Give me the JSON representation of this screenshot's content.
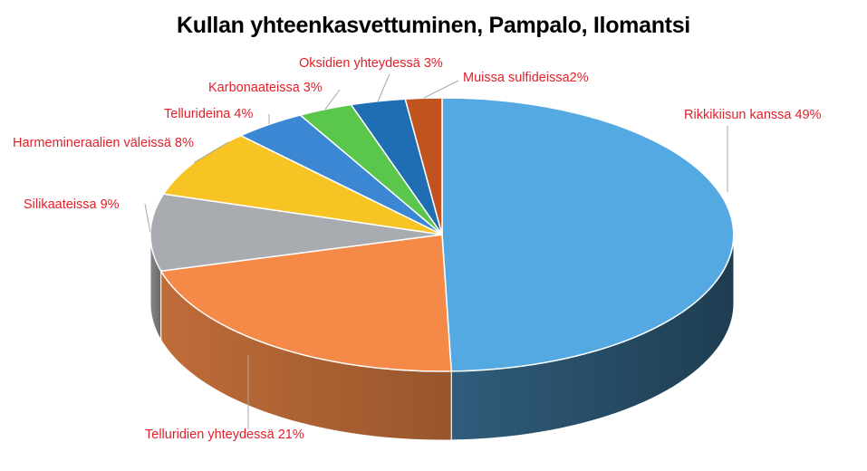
{
  "chart_data": {
    "type": "pie",
    "title": "Kullan yhteenkasvettuminen, Pampalo,  Ilomantsi",
    "slices": [
      {
        "label": "Rikkikiisun kanssa 49%",
        "value": 49,
        "color": "#55a9e2"
      },
      {
        "label": "Telluridien yhteydessä 21%",
        "value": 21,
        "color": "#f58a48"
      },
      {
        "label": "Silikaateissa 9%",
        "value": 9,
        "color": "#a8acb0"
      },
      {
        "label": "Harmemineraalien väleissä 8%",
        "value": 8,
        "color": "#f8c424"
      },
      {
        "label": "Tellurideina 4%",
        "value": 4,
        "color": "#3b87d3"
      },
      {
        "label": "Karbonaateissa 3%",
        "value": 3,
        "color": "#5bc64c"
      },
      {
        "label": "Oksidien yhteydessä 3%",
        "value": 3,
        "color": "#1f6db2"
      },
      {
        "label": "Muissa sulfideissa2%",
        "value": 2,
        "color": "#c1541e"
      }
    ],
    "label_color": "#e3202a",
    "legend": "none"
  }
}
